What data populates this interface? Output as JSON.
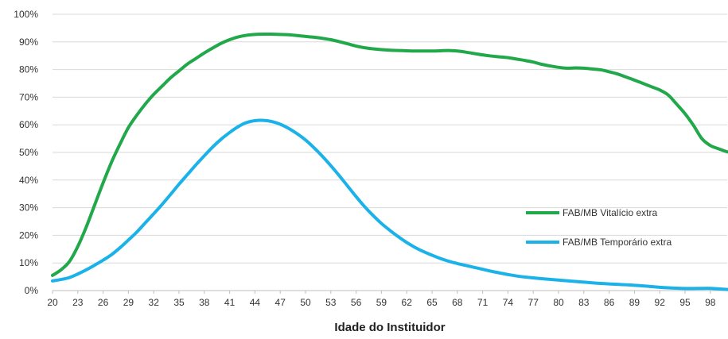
{
  "chart_data": {
    "type": "line",
    "xlabel": "Idade do Instituidor",
    "ylabel": "",
    "ylim": [
      0,
      100
    ],
    "y_ticks": [
      "0%",
      "10%",
      "20%",
      "30%",
      "40%",
      "50%",
      "60%",
      "70%",
      "80%",
      "90%",
      "100%"
    ],
    "x_ticks": [
      "20",
      "23",
      "26",
      "29",
      "32",
      "35",
      "38",
      "41",
      "44",
      "47",
      "50",
      "53",
      "56",
      "59",
      "62",
      "65",
      "68",
      "71",
      "74",
      "77",
      "80",
      "83",
      "86",
      "89",
      "92",
      "95",
      "98"
    ],
    "x": [
      20,
      21,
      22,
      23,
      24,
      25,
      26,
      27,
      28,
      29,
      30,
      31,
      32,
      33,
      34,
      35,
      36,
      37,
      38,
      39,
      40,
      41,
      42,
      43,
      44,
      45,
      46,
      47,
      48,
      49,
      50,
      51,
      52,
      53,
      54,
      55,
      56,
      57,
      58,
      59,
      60,
      61,
      62,
      63,
      64,
      65,
      66,
      67,
      68,
      69,
      70,
      71,
      72,
      73,
      74,
      75,
      76,
      77,
      78,
      79,
      80,
      81,
      82,
      83,
      84,
      85,
      86,
      87,
      88,
      89,
      90,
      91,
      92,
      93,
      94,
      95,
      96,
      97,
      98,
      99,
      100
    ],
    "series": [
      {
        "name": "FAB/MB Vitalício extra",
        "color": "#21a84a",
        "values": [
          5.5,
          7.5,
          10.5,
          16,
          23,
          31,
          39,
          46.5,
          53,
          59,
          63.5,
          67.5,
          71,
          74,
          77,
          79.5,
          82,
          84,
          86,
          87.8,
          89.5,
          90.8,
          91.8,
          92.4,
          92.7,
          92.8,
          92.8,
          92.7,
          92.6,
          92.3,
          92,
          91.7,
          91.3,
          90.8,
          90.1,
          89.3,
          88.5,
          87.9,
          87.5,
          87.2,
          87,
          86.9,
          86.8,
          86.7,
          86.7,
          86.7,
          86.8,
          86.9,
          86.7,
          86.3,
          85.8,
          85.3,
          84.9,
          84.6,
          84.3,
          83.8,
          83.3,
          82.7,
          81.9,
          81.3,
          80.8,
          80.5,
          80.6,
          80.5,
          80.2,
          79.9,
          79.2,
          78.4,
          77.3,
          76.2,
          75,
          73.8,
          72.6,
          70.8,
          67.5,
          64,
          59.8,
          55,
          52.5,
          51.3,
          50.2
        ]
      },
      {
        "name": "FAB/MB Temporário extra",
        "color": "#1ab2e8",
        "values": [
          3.5,
          4,
          4.7,
          6,
          7.5,
          9.2,
          11,
          13,
          15.5,
          18.3,
          21.2,
          24.5,
          27.8,
          31.2,
          34.8,
          38.5,
          42,
          45.5,
          48.8,
          52,
          54.8,
          57.2,
          59.3,
          60.8,
          61.5,
          61.6,
          61.2,
          60.2,
          58.7,
          56.8,
          54.5,
          51.7,
          48.6,
          45.2,
          41.6,
          37.8,
          34,
          30.4,
          27.2,
          24.3,
          21.8,
          19.5,
          17.4,
          15.6,
          14.1,
          12.8,
          11.6,
          10.6,
          9.8,
          9.1,
          8.4,
          7.7,
          7,
          6.4,
          5.8,
          5.3,
          4.9,
          4.6,
          4.3,
          4.05,
          3.8,
          3.55,
          3.3,
          3.05,
          2.8,
          2.6,
          2.4,
          2.25,
          2.1,
          1.9,
          1.7,
          1.45,
          1.2,
          1,
          0.85,
          0.75,
          0.75,
          0.8,
          0.8,
          0.6,
          0.4
        ]
      }
    ],
    "legend_position": "right",
    "grid": true
  }
}
